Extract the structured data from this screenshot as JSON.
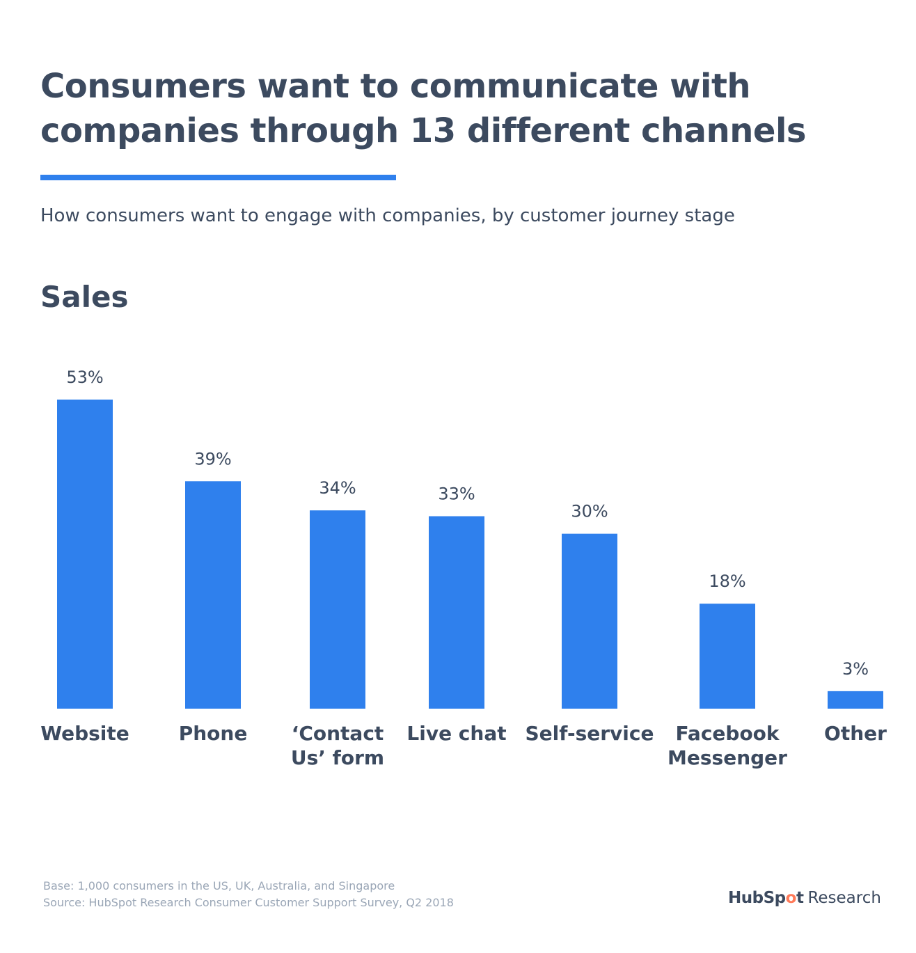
{
  "title": "Consumers want to communicate with companies through 13 different channels",
  "subtitle": "How consumers want to engage with companies, by customer journey stage",
  "section_label": "Sales",
  "footnote": {
    "base": "Base: 1,000 consumers in the US, UK, Australia, and Singapore",
    "source": "Source: HubSpot Research Consumer Customer Support Survey, Q2 2018"
  },
  "brand": {
    "logo_text": "HubSpot",
    "logo_part_before": "HubSp",
    "logo_part_accent": "o",
    "logo_part_after": "t",
    "suffix": "Research"
  },
  "colors": {
    "bar": "#2f80ed",
    "text": "#3c4a5f",
    "muted": "#9aa6b6",
    "accent": "#ff7a59"
  },
  "chart_data": {
    "type": "bar",
    "title": "Sales",
    "categories": [
      [
        "Website"
      ],
      [
        "Phone"
      ],
      [
        "‘Contact",
        "Us’ form"
      ],
      [
        "Live chat"
      ],
      [
        "Self-service"
      ],
      [
        "Facebook",
        "Messenger"
      ],
      [
        "Other"
      ]
    ],
    "values": [
      53,
      39,
      34,
      33,
      30,
      18,
      3
    ],
    "value_labels": [
      "53%",
      "39%",
      "34%",
      "33%",
      "30%",
      "18%",
      "3%"
    ],
    "unit": "%",
    "ylim": [
      0,
      53
    ],
    "grid": false,
    "legend": "none"
  }
}
